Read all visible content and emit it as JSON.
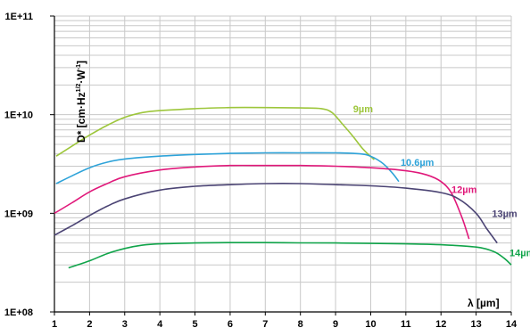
{
  "chart_data": {
    "type": "line",
    "title": "",
    "xlabel": "λ [µm]",
    "ylabel_main": "D* [cm·Hz",
    "ylabel_sup1": "1/2",
    "ylabel_mid": "·W",
    "ylabel_sup2": "-1",
    "ylabel_end": "]",
    "xlim": [
      1,
      14
    ],
    "ylim": [
      100000000.0,
      100000000000.0
    ],
    "yscale": "log",
    "grid": true,
    "x_ticks": [
      "1",
      "2",
      "3",
      "4",
      "5",
      "6",
      "7",
      "8",
      "9",
      "10",
      "11",
      "12",
      "13",
      "14"
    ],
    "y_ticks": [
      {
        "value": 100000000.0,
        "label": "1E+08"
      },
      {
        "value": 1000000000.0,
        "label": "1E+09"
      },
      {
        "value": 10000000000.0,
        "label": "1E+10"
      },
      {
        "value": 100000000000.0,
        "label": "1E+11"
      }
    ],
    "series": [
      {
        "name": "9µm",
        "color": "#9dc63b",
        "label_at": [
          9.5,
          11500000000.0
        ],
        "points": [
          [
            1.05,
            3800000000.0
          ],
          [
            1.5,
            4800000000.0
          ],
          [
            2,
            6200000000.0
          ],
          [
            2.5,
            7800000000.0
          ],
          [
            3,
            9400000000.0
          ],
          [
            3.5,
            10500000000.0
          ],
          [
            4,
            11000000000.0
          ],
          [
            5,
            11500000000.0
          ],
          [
            6,
            11800000000.0
          ],
          [
            7,
            11800000000.0
          ],
          [
            8,
            11700000000.0
          ],
          [
            8.6,
            11500000000.0
          ],
          [
            8.9,
            10500000000.0
          ],
          [
            9.2,
            8000000000.0
          ],
          [
            9.5,
            6000000000.0
          ],
          [
            9.8,
            4400000000.0
          ],
          [
            10.1,
            3500000000.0
          ]
        ]
      },
      {
        "name": "10.6µm",
        "color": "#2ea3d9",
        "label_at": [
          10.85,
          3300000000.0
        ],
        "points": [
          [
            1.05,
            2000000000.0
          ],
          [
            1.5,
            2400000000.0
          ],
          [
            2,
            2900000000.0
          ],
          [
            2.5,
            3300000000.0
          ],
          [
            3,
            3550000000.0
          ],
          [
            4,
            3800000000.0
          ],
          [
            5,
            3950000000.0
          ],
          [
            6,
            4050000000.0
          ],
          [
            7,
            4100000000.0
          ],
          [
            8,
            4100000000.0
          ],
          [
            9,
            4100000000.0
          ],
          [
            9.5,
            4050000000.0
          ],
          [
            9.9,
            3900000000.0
          ],
          [
            10.3,
            3300000000.0
          ],
          [
            10.6,
            2600000000.0
          ],
          [
            10.8,
            2100000000.0
          ]
        ]
      },
      {
        "name": "12µm",
        "color": "#e0187a",
        "label_at": [
          12.3,
          1750000000.0
        ],
        "points": [
          [
            1.0,
            1000000000.0
          ],
          [
            1.5,
            1280000000.0
          ],
          [
            2,
            1650000000.0
          ],
          [
            2.5,
            2000000000.0
          ],
          [
            3,
            2350000000.0
          ],
          [
            4,
            2750000000.0
          ],
          [
            5,
            2950000000.0
          ],
          [
            6,
            3050000000.0
          ],
          [
            7,
            3050000000.0
          ],
          [
            8,
            3050000000.0
          ],
          [
            9,
            3000000000.0
          ],
          [
            10,
            2900000000.0
          ],
          [
            11,
            2700000000.0
          ],
          [
            11.6,
            2450000000.0
          ],
          [
            12,
            2100000000.0
          ],
          [
            12.3,
            1600000000.0
          ],
          [
            12.6,
            900000000.0
          ],
          [
            12.8,
            550000000.0
          ]
        ]
      },
      {
        "name": "13µm",
        "color": "#4b4474",
        "label_at": [
          13.45,
          1000000000.0
        ],
        "points": [
          [
            1.0,
            600000000.0
          ],
          [
            1.5,
            750000000.0
          ],
          [
            2,
            950000000.0
          ],
          [
            2.5,
            1180000000.0
          ],
          [
            3,
            1400000000.0
          ],
          [
            4,
            1720000000.0
          ],
          [
            5,
            1880000000.0
          ],
          [
            6,
            1950000000.0
          ],
          [
            7,
            2000000000.0
          ],
          [
            8,
            2000000000.0
          ],
          [
            9,
            1950000000.0
          ],
          [
            10,
            1900000000.0
          ],
          [
            11,
            1800000000.0
          ],
          [
            12,
            1620000000.0
          ],
          [
            12.5,
            1400000000.0
          ],
          [
            13,
            1000000000.0
          ],
          [
            13.3,
            700000000.0
          ],
          [
            13.6,
            500000000.0
          ]
        ]
      },
      {
        "name": "14µm",
        "color": "#10a44a",
        "label_at": [
          13.95,
          400000000.0
        ],
        "points": [
          [
            1.4,
            280000000.0
          ],
          [
            2,
            330000000.0
          ],
          [
            2.5,
            390000000.0
          ],
          [
            3,
            440000000.0
          ],
          [
            3.5,
            475000000.0
          ],
          [
            4,
            490000000.0
          ],
          [
            5,
            500000000.0
          ],
          [
            6,
            505000000.0
          ],
          [
            7,
            505000000.0
          ],
          [
            8,
            502000000.0
          ],
          [
            9,
            500000000.0
          ],
          [
            10,
            495000000.0
          ],
          [
            11,
            490000000.0
          ],
          [
            12,
            480000000.0
          ],
          [
            13,
            455000000.0
          ],
          [
            13.5,
            410000000.0
          ],
          [
            13.8,
            350000000.0
          ],
          [
            14,
            300000000.0
          ]
        ]
      }
    ]
  }
}
